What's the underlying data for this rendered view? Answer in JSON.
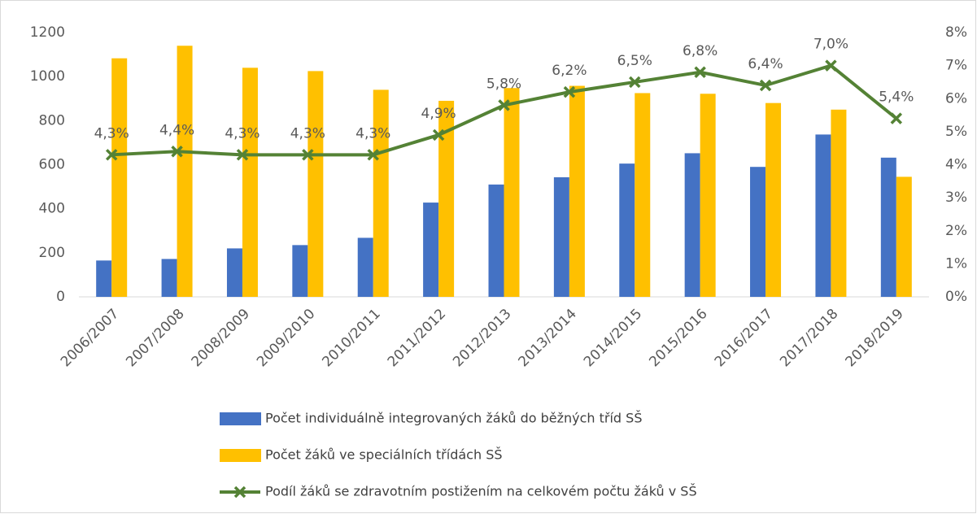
{
  "chart_data": {
    "type": "bar_line",
    "categories": [
      "2006/2007",
      "2007/2008",
      "2008/2009",
      "2009/2010",
      "2010/2011",
      "2011/2012",
      "2012/2013",
      "2013/2014",
      "2014/2015",
      "2015/2016",
      "2016/2017",
      "2017/2018",
      "2018/2019"
    ],
    "series": [
      {
        "name": "Počet individuálně integrovaných žáků do běžných tříd SŠ",
        "type": "bar",
        "color": "#4472c4",
        "values": [
          165,
          172,
          220,
          235,
          268,
          428,
          510,
          543,
          605,
          652,
          590,
          737,
          632
        ]
      },
      {
        "name": "Počet žáků ve speciálních třídách SŠ",
        "type": "bar",
        "color": "#ffc000",
        "values": [
          1083,
          1140,
          1040,
          1025,
          940,
          890,
          948,
          958,
          925,
          922,
          880,
          850,
          545
        ]
      },
      {
        "name": "Podíl žáků se zdravotním postižením na celkovém počtu žáků v SŠ",
        "type": "line",
        "axis": "y2",
        "color": "#548235",
        "values": [
          4.3,
          4.4,
          4.3,
          4.3,
          4.3,
          4.9,
          5.8,
          6.2,
          6.5,
          6.8,
          6.4,
          7.0,
          5.4
        ],
        "value_labels": [
          "4,3%",
          "4,4%",
          "4,3%",
          "4,3%",
          "4,3%",
          "4,9%",
          "5,8%",
          "6,2%",
          "6,5%",
          "6,8%",
          "6,4%",
          "7,0%",
          "5,4%"
        ]
      }
    ],
    "ylim": [
      0,
      1200
    ],
    "yticks": [
      0,
      200,
      400,
      600,
      800,
      1000,
      1200
    ],
    "y2lim": [
      0,
      8
    ],
    "y2ticks": [
      {
        "value": 0,
        "label": "0%"
      },
      {
        "value": 1,
        "label": "1%"
      },
      {
        "value": 2,
        "label": "2%"
      },
      {
        "value": 3,
        "label": "3%"
      },
      {
        "value": 4,
        "label": "4%"
      },
      {
        "value": 5,
        "label": "5%"
      },
      {
        "value": 6,
        "label": "6%"
      },
      {
        "value": 7,
        "label": "7%"
      },
      {
        "value": 8,
        "label": "8%"
      }
    ],
    "grid": false,
    "legend": "bottom"
  }
}
